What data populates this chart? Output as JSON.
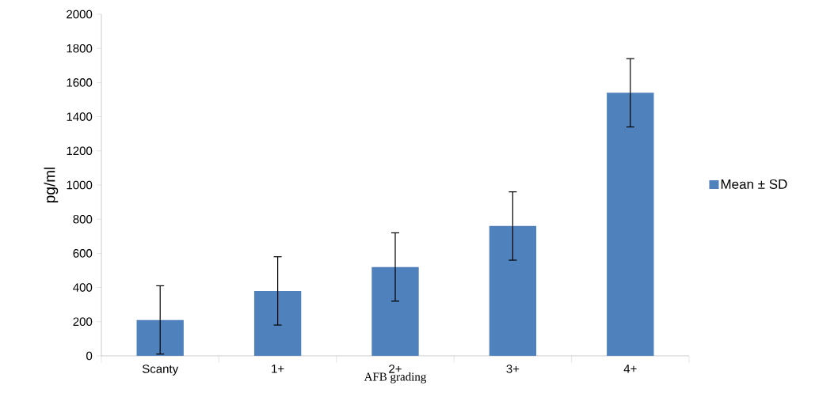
{
  "chart_data": {
    "type": "bar",
    "xlabel": "AFB grading",
    "ylabel": "pg/ml",
    "categories": [
      "Scanty",
      "1+",
      "2+",
      "3+",
      "4+"
    ],
    "series": [
      {
        "name": "Mean ± SD",
        "color": "#4f81bd",
        "values": [
          210,
          380,
          520,
          760,
          1540
        ],
        "errors": [
          200,
          200,
          200,
          200,
          200
        ]
      }
    ],
    "ylim": [
      0,
      2000
    ],
    "yticks": [
      0,
      200,
      400,
      600,
      800,
      1000,
      1200,
      1400,
      1600,
      1800,
      2000
    ],
    "grid": false,
    "legend": "right"
  }
}
